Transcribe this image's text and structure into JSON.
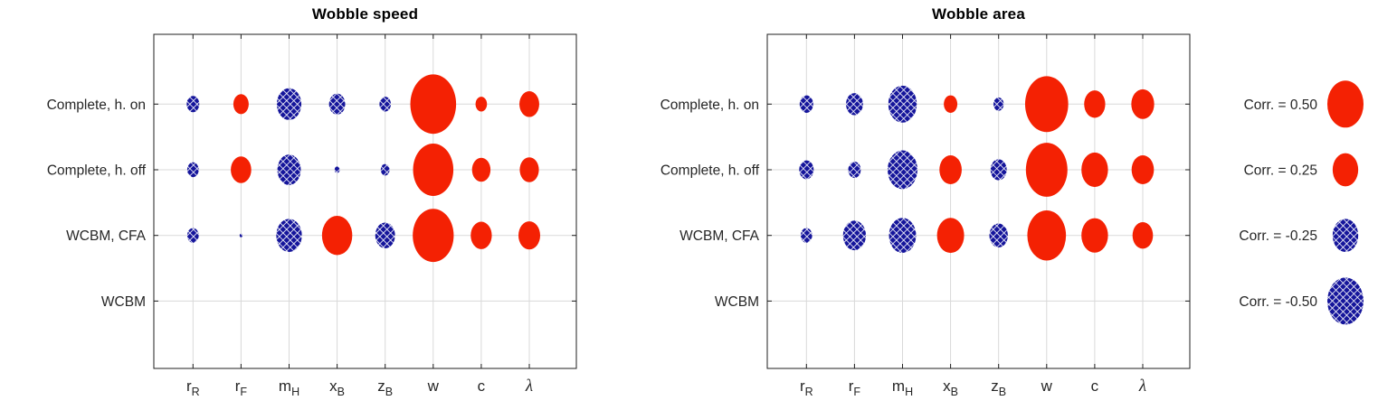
{
  "figure": {
    "background": "#ffffff"
  },
  "colors": {
    "positive_marker": "#f42103",
    "negative_marker": "#15159b",
    "hatch_gap": "#ffffff",
    "grid": "#d9d9d9",
    "axis_border": "#1f1f1f",
    "tick": "#1f1f1f",
    "tick_label": "#262626",
    "title": "#000000",
    "legend_text": "#262626"
  },
  "marker_scale": {
    "ref_corr": 0.5,
    "rx_at_ref": 20,
    "ry_at_ref": 26,
    "note": "ellipse area proportional to |correlation|"
  },
  "legend": {
    "items": [
      {
        "label": "Corr. = 0.50",
        "value": 0.5
      },
      {
        "label": "Corr. = 0.25",
        "value": 0.25
      },
      {
        "label": "Corr. = -0.25",
        "value": -0.25
      },
      {
        "label": "Corr. = -0.50",
        "value": -0.5
      }
    ]
  },
  "chart_data": [
    {
      "type": "bubble",
      "subtype": "correlation-matrix",
      "title": "Wobble speed",
      "grid": true,
      "legend_position": "right of both charts",
      "rows": [
        "Complete, h. on",
        "Complete, h. off",
        "WCBM, CFA",
        "WCBM"
      ],
      "columns": [
        {
          "main": "r",
          "sub": "R",
          "italic": false
        },
        {
          "main": "r",
          "sub": "F",
          "italic": false
        },
        {
          "main": "m",
          "sub": "H",
          "italic": false
        },
        {
          "main": "x",
          "sub": "B",
          "italic": false
        },
        {
          "main": "z",
          "sub": "B",
          "italic": false
        },
        {
          "main": "w",
          "sub": "",
          "italic": false
        },
        {
          "main": "c",
          "sub": "",
          "italic": false
        },
        {
          "main": "λ",
          "sub": "",
          "italic": true
        }
      ],
      "values": [
        [
          -0.06,
          0.09,
          -0.23,
          -0.1,
          -0.05,
          0.8,
          0.05,
          0.15
        ],
        [
          -0.05,
          0.16,
          -0.21,
          -0.01,
          -0.03,
          0.62,
          0.13,
          0.14
        ],
        [
          -0.05,
          -0.003,
          -0.25,
          0.35,
          -0.15,
          0.64,
          0.17,
          0.18
        ],
        [
          0,
          0,
          0,
          0,
          0,
          0,
          0,
          0
        ]
      ]
    },
    {
      "type": "bubble",
      "subtype": "correlation-matrix",
      "title": "Wobble area",
      "grid": true,
      "legend_position": "right of both charts",
      "rows": [
        "Complete, h. on",
        "Complete, h. off",
        "WCBM, CFA",
        "WCBM"
      ],
      "columns": [
        {
          "main": "r",
          "sub": "R",
          "italic": false
        },
        {
          "main": "r",
          "sub": "F",
          "italic": false
        },
        {
          "main": "m",
          "sub": "H",
          "italic": false
        },
        {
          "main": "x",
          "sub": "B",
          "italic": false
        },
        {
          "main": "z",
          "sub": "B",
          "italic": false
        },
        {
          "main": "w",
          "sub": "",
          "italic": false
        },
        {
          "main": "c",
          "sub": "",
          "italic": false
        },
        {
          "main": "λ",
          "sub": "",
          "italic": true
        }
      ],
      "values": [
        [
          -0.07,
          -0.11,
          -0.31,
          0.07,
          -0.04,
          0.71,
          0.17,
          0.2
        ],
        [
          -0.08,
          -0.06,
          -0.34,
          0.19,
          -0.1,
          0.66,
          0.27,
          0.19
        ],
        [
          -0.05,
          -0.2,
          -0.28,
          0.28,
          -0.13,
          0.57,
          0.27,
          0.16
        ],
        [
          0,
          0,
          0,
          0,
          0,
          0,
          0,
          0
        ]
      ]
    }
  ]
}
